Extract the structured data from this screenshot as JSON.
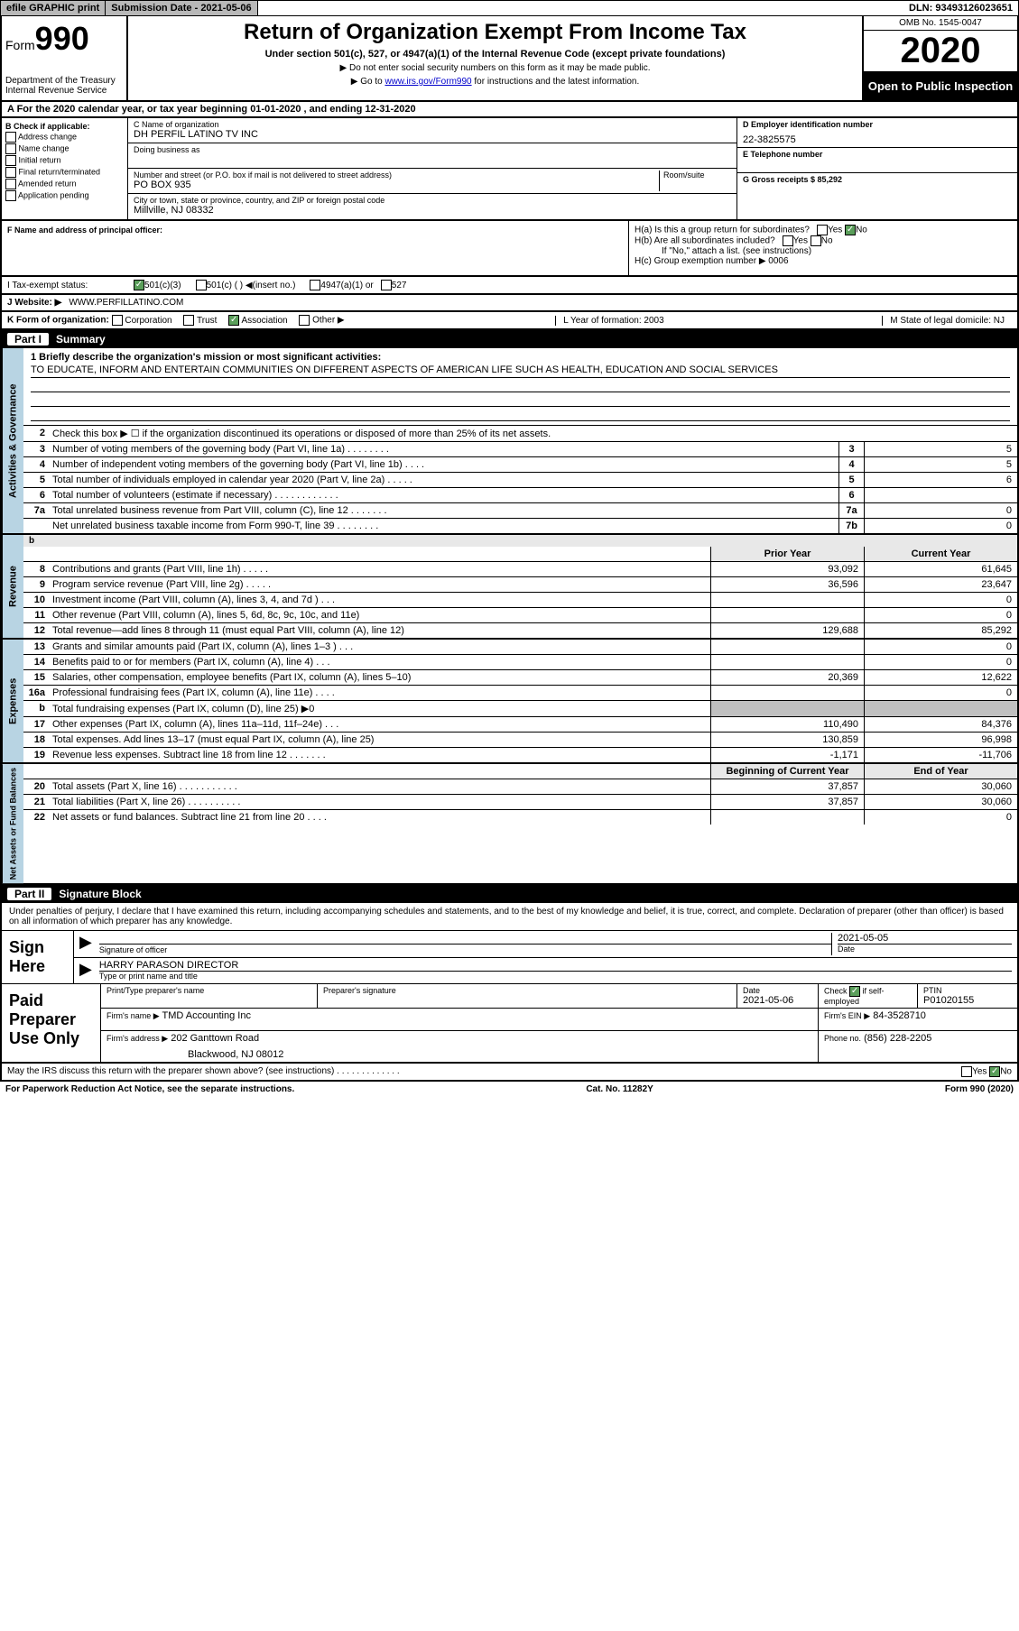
{
  "topbar": {
    "efile": "efile GRAPHIC print",
    "submission": "Submission Date - 2021-05-06",
    "dln": "DLN: 93493126023651"
  },
  "header": {
    "form_prefix": "Form",
    "form_num": "990",
    "dept": "Department of the Treasury\nInternal Revenue Service",
    "title": "Return of Organization Exempt From Income Tax",
    "subtitle": "Under section 501(c), 527, or 4947(a)(1) of the Internal Revenue Code (except private foundations)",
    "note1": "▶ Do not enter social security numbers on this form as it may be made public.",
    "note2_pre": "▶ Go to ",
    "note2_link": "www.irs.gov/Form990",
    "note2_post": " for instructions and the latest information.",
    "omb": "OMB No. 1545-0047",
    "year": "2020",
    "inspection": "Open to Public Inspection"
  },
  "period": "A For the 2020 calendar year, or tax year beginning 01-01-2020    , and ending 12-31-2020",
  "section_b": {
    "label": "B Check if applicable:",
    "opts": [
      "Address change",
      "Name change",
      "Initial return",
      "Final return/terminated",
      "Amended return",
      "Application pending"
    ]
  },
  "section_c": {
    "name_label": "C Name of organization",
    "name": "DH PERFIL LATINO TV INC",
    "dba_label": "Doing business as",
    "dba": "",
    "addr_label": "Number and street (or P.O. box if mail is not delivered to street address)",
    "room_label": "Room/suite",
    "addr": "PO BOX 935",
    "city_label": "City or town, state or province, country, and ZIP or foreign postal code",
    "city": "Millville, NJ  08332",
    "officer_label": "F  Name and address of principal officer:"
  },
  "section_d": {
    "ein_label": "D Employer identification number",
    "ein": "22-3825575",
    "phone_label": "E Telephone number",
    "phone": "",
    "gross_label": "G Gross receipts $ 85,292"
  },
  "section_h": {
    "ha": "H(a)  Is this a group return for subordinates?",
    "hb": "H(b)  Are all subordinates included?",
    "hb_note": "If \"No,\" attach a list. (see instructions)",
    "hc": "H(c)  Group exemption number ▶  0006"
  },
  "tax_status": {
    "label": "I    Tax-exempt status:",
    "opts": [
      "501(c)(3)",
      "501(c) (  ) ◀(insert no.)",
      "4947(a)(1) or",
      "527"
    ]
  },
  "website": {
    "label": "J   Website: ▶",
    "value": "WWW.PERFILLATINO.COM"
  },
  "form_org": {
    "k_label": "K Form of organization:",
    "k_opts": [
      "Corporation",
      "Trust",
      "Association",
      "Other ▶"
    ],
    "l": "L Year of formation: 2003",
    "m": "M State of legal domicile: NJ"
  },
  "part1": {
    "title": "Summary",
    "mission_label": "1   Briefly describe the organization's mission or most significant activities:",
    "mission": "TO EDUCATE, INFORM AND ENTERTAIN COMMUNITIES ON DIFFERENT ASPECTS OF AMERICAN LIFE SUCH AS HEALTH, EDUCATION AND SOCIAL SERVICES",
    "line2": "Check this box ▶ ☐  if the organization discontinued its operations or disposed of more than 25% of its net assets.",
    "prior_h": "Prior Year",
    "current_h": "Current Year",
    "begin_h": "Beginning of Current Year",
    "end_h": "End of Year"
  },
  "side_labels": {
    "activities": "Activities & Governance",
    "revenue": "Revenue",
    "expenses": "Expenses",
    "net": "Net Assets or Fund Balances"
  },
  "gov_lines": [
    {
      "n": "3",
      "t": "Number of voting members of the governing body (Part VI, line 1a)   .   .   .   .   .   .   .   .",
      "box": "3",
      "v": "5"
    },
    {
      "n": "4",
      "t": "Number of independent voting members of the governing body (Part VI, line 1b)  .   .   .   .",
      "box": "4",
      "v": "5"
    },
    {
      "n": "5",
      "t": "Total number of individuals employed in calendar year 2020 (Part V, line 2a)  .   .   .   .   .",
      "box": "5",
      "v": "6"
    },
    {
      "n": "6",
      "t": "Total number of volunteers (estimate if necessary)   .   .   .   .   .   .   .   .   .   .   .   .",
      "box": "6",
      "v": ""
    },
    {
      "n": "7a",
      "t": "Total unrelated business revenue from Part VIII, column (C), line 12  .   .   .   .   .   .   .",
      "box": "7a",
      "v": "0"
    },
    {
      "n": "",
      "t": "Net unrelated business taxable income from Form 990-T, line 39   .   .   .   .   .   .   .   .",
      "box": "7b",
      "v": "0"
    }
  ],
  "rev_lines": [
    {
      "n": "8",
      "t": "Contributions and grants (Part VIII, line 1h)   .   .   .   .   .",
      "p": "93,092",
      "c": "61,645"
    },
    {
      "n": "9",
      "t": "Program service revenue (Part VIII, line 2g)   .   .   .   .   .",
      "p": "36,596",
      "c": "23,647"
    },
    {
      "n": "10",
      "t": "Investment income (Part VIII, column (A), lines 3, 4, and 7d )   .   .   .",
      "p": "",
      "c": "0"
    },
    {
      "n": "11",
      "t": "Other revenue (Part VIII, column (A), lines 5, 6d, 8c, 9c, 10c, and 11e)",
      "p": "",
      "c": "0"
    },
    {
      "n": "12",
      "t": "Total revenue—add lines 8 through 11 (must equal Part VIII, column (A), line 12)",
      "p": "129,688",
      "c": "85,292"
    }
  ],
  "exp_lines": [
    {
      "n": "13",
      "t": "Grants and similar amounts paid (Part IX, column (A), lines 1–3 )   .   .   .",
      "p": "",
      "c": "0"
    },
    {
      "n": "14",
      "t": "Benefits paid to or for members (Part IX, column (A), line 4)   .   .   .",
      "p": "",
      "c": "0"
    },
    {
      "n": "15",
      "t": "Salaries, other compensation, employee benefits (Part IX, column (A), lines 5–10)",
      "p": "20,369",
      "c": "12,622"
    },
    {
      "n": "16a",
      "t": "Professional fundraising fees (Part IX, column (A), line 11e)   .   .   .   .",
      "p": "",
      "c": "0"
    },
    {
      "n": "b",
      "t": "Total fundraising expenses (Part IX, column (D), line 25) ▶0",
      "p": "shaded",
      "c": "shaded"
    },
    {
      "n": "17",
      "t": "Other expenses (Part IX, column (A), lines 11a–11d, 11f–24e)   .   .   .",
      "p": "110,490",
      "c": "84,376"
    },
    {
      "n": "18",
      "t": "Total expenses. Add lines 13–17 (must equal Part IX, column (A), line 25)",
      "p": "130,859",
      "c": "96,998"
    },
    {
      "n": "19",
      "t": "Revenue less expenses. Subtract line 18 from line 12 .   .   .   .   .   .   .",
      "p": "-1,171",
      "c": "-11,706"
    }
  ],
  "net_lines": [
    {
      "n": "20",
      "t": "Total assets (Part X, line 16)  .   .   .   .   .   .   .   .   .   .   .",
      "p": "37,857",
      "c": "30,060"
    },
    {
      "n": "21",
      "t": "Total liabilities (Part X, line 26)  .   .   .   .   .   .   .   .   .   .",
      "p": "37,857",
      "c": "30,060"
    },
    {
      "n": "22",
      "t": "Net assets or fund balances. Subtract line 21 from line 20   .   .   .   .",
      "p": "",
      "c": "0"
    }
  ],
  "part2": {
    "title": "Signature Block",
    "penalty": "Under penalties of perjury, I declare that I have examined this return, including accompanying schedules and statements, and to the best of my knowledge and belief, it is true, correct, and complete. Declaration of preparer (other than officer) is based on all information of which preparer has any knowledge."
  },
  "sign": {
    "label": "Sign Here",
    "sig_label": "Signature of officer",
    "date_label": "Date",
    "date": "2021-05-05",
    "name": "HARRY PARASON  DIRECTOR",
    "name_label": "Type or print name and title"
  },
  "prep": {
    "label": "Paid Preparer Use Only",
    "col1": "Print/Type preparer's name",
    "col2": "Preparer's signature",
    "col3": "Date",
    "date": "2021-05-06",
    "col4_pre": "Check",
    "col4_post": "if self-employed",
    "col5": "PTIN",
    "ptin": "P01020155",
    "firm_label": "Firm's name    ▶",
    "firm": "TMD Accounting Inc",
    "ein_label": "Firm's EIN ▶",
    "ein": "84-3528710",
    "addr_label": "Firm's address ▶",
    "addr1": "202 Ganttown Road",
    "addr2": "Blackwood, NJ  08012",
    "phone_label": "Phone no.",
    "phone": "(856) 228-2205"
  },
  "footer": {
    "q": "May the IRS discuss this return with the preparer shown above? (see instructions)   .   .   .   .   .   .   .   .   .   .   .   .   .",
    "note": "For Paperwork Reduction Act Notice, see the separate instructions.",
    "cat": "Cat. No. 11282Y",
    "form": "Form 990 (2020)"
  }
}
